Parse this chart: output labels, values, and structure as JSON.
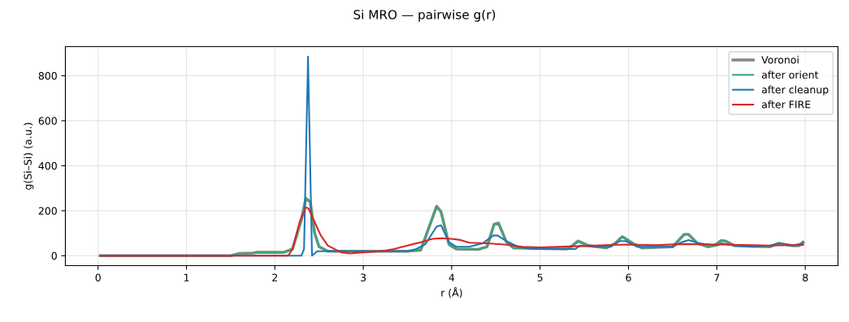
{
  "chart_data": {
    "type": "line",
    "title": "Si MRO — pairwise g(r)",
    "xlabel": "r (Å)",
    "ylabel": "g(Si–Si) (a.u.)",
    "xlim": [
      -0.37,
      8.37
    ],
    "ylim": [
      -44,
      929
    ],
    "xticks": [
      0,
      1,
      2,
      3,
      4,
      5,
      6,
      7,
      8
    ],
    "yticks": [
      0,
      200,
      400,
      600,
      800
    ],
    "grid": true,
    "legend": "top right",
    "marker": "none",
    "line_style": "solid",
    "series": [
      {
        "name": "Voronoi",
        "color": "#888888",
        "x": [
          0.025,
          1.5,
          1.6,
          1.75,
          1.8,
          2.1,
          2.2,
          2.3,
          2.35,
          2.4,
          2.45,
          2.5,
          2.6,
          3.5,
          3.65,
          3.83,
          3.88,
          3.97,
          4.05,
          4.3,
          4.4,
          4.48,
          4.53,
          4.62,
          4.7,
          5.3,
          5.35,
          5.43,
          5.55,
          5.75,
          5.85,
          5.93,
          6.05,
          6.15,
          6.5,
          6.63,
          6.68,
          6.78,
          6.9,
          6.97,
          7.05,
          7.1,
          7.2,
          7.6,
          7.7,
          7.85,
          7.93,
          7.975
        ],
        "values": [
          0,
          0,
          10,
          12,
          15,
          15,
          30,
          160,
          255,
          240,
          100,
          40,
          20,
          20,
          25,
          220,
          195,
          50,
          30,
          28,
          40,
          140,
          145,
          60,
          35,
          30,
          40,
          65,
          45,
          35,
          55,
          85,
          55,
          35,
          40,
          95,
          95,
          55,
          40,
          45,
          68,
          65,
          45,
          40,
          55,
          45,
          45,
          60
        ]
      },
      {
        "name": "after orient",
        "color": "#3aa874",
        "x": [
          0.025,
          1.5,
          1.6,
          1.75,
          1.8,
          2.1,
          2.2,
          2.3,
          2.35,
          2.4,
          2.45,
          2.5,
          2.6,
          3.5,
          3.65,
          3.83,
          3.88,
          3.97,
          4.05,
          4.3,
          4.4,
          4.48,
          4.53,
          4.62,
          4.7,
          5.3,
          5.35,
          5.43,
          5.55,
          5.75,
          5.85,
          5.93,
          6.05,
          6.15,
          6.5,
          6.63,
          6.68,
          6.78,
          6.9,
          6.97,
          7.05,
          7.1,
          7.2,
          7.6,
          7.7,
          7.85,
          7.93,
          7.975
        ],
        "values": [
          0,
          0,
          10,
          12,
          15,
          15,
          30,
          160,
          250,
          240,
          100,
          40,
          20,
          20,
          25,
          220,
          195,
          50,
          30,
          28,
          40,
          140,
          145,
          60,
          35,
          30,
          40,
          65,
          45,
          35,
          55,
          85,
          55,
          35,
          40,
          95,
          95,
          55,
          40,
          45,
          68,
          65,
          45,
          40,
          55,
          45,
          45,
          60
        ]
      },
      {
        "name": "after cleanup",
        "color": "#1f77b4",
        "x": [
          0.025,
          2.3,
          2.33,
          2.375,
          2.42,
          2.48,
          3.5,
          3.6,
          3.7,
          3.83,
          3.88,
          3.97,
          4.05,
          4.2,
          4.35,
          4.47,
          4.52,
          4.62,
          4.75,
          4.9,
          5.4,
          5.45,
          5.6,
          5.8,
          5.9,
          5.97,
          6.1,
          6.5,
          6.6,
          6.68,
          6.8,
          7.0,
          7.05,
          7.2,
          7.4,
          7.6,
          7.7,
          7.85,
          7.975
        ],
        "values": [
          0,
          0,
          30,
          885,
          0,
          20,
          20,
          30,
          50,
          130,
          135,
          60,
          40,
          40,
          55,
          90,
          90,
          65,
          40,
          30,
          30,
          45,
          40,
          40,
          65,
          65,
          40,
          40,
          60,
          70,
          55,
          45,
          55,
          45,
          40,
          45,
          55,
          45,
          55
        ]
      },
      {
        "name": "after FIRE",
        "color": "#d62728",
        "x": [
          0.025,
          2.15,
          2.2,
          2.28,
          2.35,
          2.38,
          2.45,
          2.52,
          2.6,
          2.65,
          2.75,
          2.85,
          3.0,
          3.2,
          3.35,
          3.5,
          3.65,
          3.78,
          3.88,
          4.0,
          4.1,
          4.2,
          4.4,
          4.6,
          4.8,
          5.0,
          5.2,
          5.5,
          5.8,
          6.0,
          6.3,
          6.6,
          7.0,
          7.3,
          7.6,
          7.975
        ],
        "values": [
          0,
          0,
          30,
          150,
          215,
          210,
          150,
          90,
          45,
          35,
          15,
          10,
          15,
          20,
          30,
          45,
          60,
          75,
          78,
          75,
          70,
          58,
          55,
          50,
          40,
          37,
          40,
          43,
          48,
          50,
          47,
          52,
          50,
          48,
          45,
          48
        ]
      }
    ]
  }
}
